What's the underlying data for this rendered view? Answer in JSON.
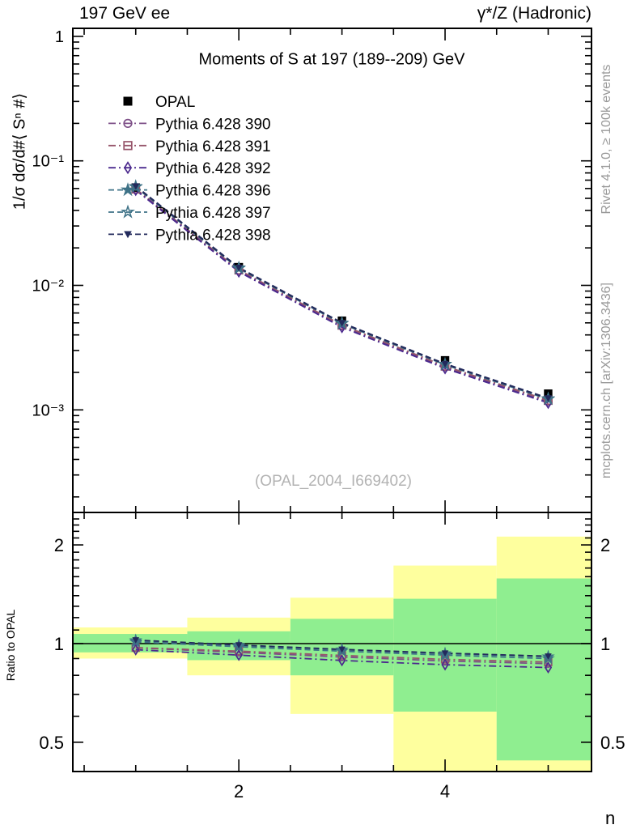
{
  "header": {
    "left": "197 GeV ee",
    "right": "γ*/Z (Hadronic)"
  },
  "watermark": "(OPAL_2004_I669402)",
  "side_captions": {
    "top": "Rivet 4.1.0, ≥ 100k events",
    "bottom": "mcplots.cern.ch [arXiv:1306.3436]"
  },
  "chart_data": {
    "type": "line",
    "x_label": "n",
    "x": [
      1,
      2,
      3,
      4,
      5
    ],
    "x_range": [
      0.39,
      5.42
    ],
    "xticks": [
      {
        "v": 2,
        "label": "2"
      },
      {
        "v": 4,
        "label": "4"
      }
    ],
    "main": {
      "title": "Moments of S at 197 (189--209) GeV",
      "y_label": "1/σ  dσ/d#⟨ Sⁿ #⟩",
      "ylog": true,
      "ylim": [
        0.00015,
        1.16
      ],
      "yticks": [
        {
          "v": 1,
          "label": "1"
        },
        {
          "v": 0.1,
          "label": "10⁻¹"
        },
        {
          "v": 0.01,
          "label": "10⁻²"
        },
        {
          "v": 0.001,
          "label": "10⁻³"
        }
      ]
    },
    "ratio": {
      "label": "Ratio to OPAL",
      "ylog": true,
      "ylim": [
        0.407,
        2.512
      ],
      "reference": 1,
      "yticks": [
        {
          "v": 0.5,
          "label": "0.5"
        },
        {
          "v": 1,
          "label": "1"
        },
        {
          "v": 2,
          "label": "2"
        }
      ]
    },
    "series": [
      {
        "name": "OPAL",
        "color": "#000000",
        "marker": "square-filled",
        "line": "none",
        "values": [
          0.061,
          0.014,
          0.0052,
          0.0025,
          0.00135
        ]
      },
      {
        "name": "Pythia 6.428 390",
        "color": "#7d4f87",
        "marker": "circle-open",
        "line": "dashdot",
        "values": [
          0.0592,
          0.01316,
          0.00473,
          0.00221,
          0.00117
        ],
        "ratio": [
          0.97,
          0.94,
          0.91,
          0.885,
          0.868
        ]
      },
      {
        "name": "Pythia 6.428 391",
        "color": "#96556a",
        "marker": "square-open",
        "line": "dashdot",
        "values": [
          0.0593,
          0.01327,
          0.00478,
          0.00224,
          0.00119
        ],
        "ratio": [
          0.972,
          0.948,
          0.92,
          0.895,
          0.878
        ]
      },
      {
        "name": "Pythia 6.428 392",
        "color": "#4c2a8e",
        "marker": "diamond-open",
        "line": "dashdot",
        "values": [
          0.0584,
          0.01291,
          0.00462,
          0.00216,
          0.00114
        ],
        "ratio": [
          0.958,
          0.922,
          0.888,
          0.862,
          0.845
        ]
      },
      {
        "name": "Pythia 6.428 396",
        "color": "#3e7287",
        "marker": "star-filled",
        "line": "dashed",
        "values": [
          0.0623,
          0.01383,
          0.00498,
          0.00233,
          0.00123
        ],
        "ratio": [
          1.022,
          0.988,
          0.958,
          0.932,
          0.912
        ]
      },
      {
        "name": "Pythia 6.428 397",
        "color": "#3e7287",
        "marker": "star-open",
        "line": "dashed",
        "values": [
          0.0617,
          0.01369,
          0.00493,
          0.00231,
          0.00122
        ],
        "ratio": [
          1.012,
          0.978,
          0.948,
          0.922,
          0.9
        ]
      },
      {
        "name": "Pythia 6.428 398",
        "color": "#232a5c",
        "marker": "triangle-down-filled",
        "line": "dashed",
        "values": [
          0.0625,
          0.01386,
          0.00499,
          0.00234,
          0.00124
        ],
        "ratio": [
          1.025,
          0.99,
          0.96,
          0.935,
          0.915
        ]
      }
    ],
    "bands": {
      "edges": [
        0.39,
        1.5,
        2.5,
        3.5,
        4.5,
        5.42
      ],
      "yellow": [
        [
          0.9,
          1.12
        ],
        [
          0.8,
          1.2
        ],
        [
          0.61,
          1.38
        ],
        [
          0.4,
          1.73
        ],
        [
          0.4,
          2.12
        ]
      ],
      "green": [
        [
          0.94,
          1.07
        ],
        [
          0.89,
          1.09
        ],
        [
          0.8,
          1.19
        ],
        [
          0.62,
          1.37
        ],
        [
          0.44,
          1.58
        ]
      ],
      "yellow_color": "#feff9e",
      "green_color": "#8fee90"
    }
  }
}
